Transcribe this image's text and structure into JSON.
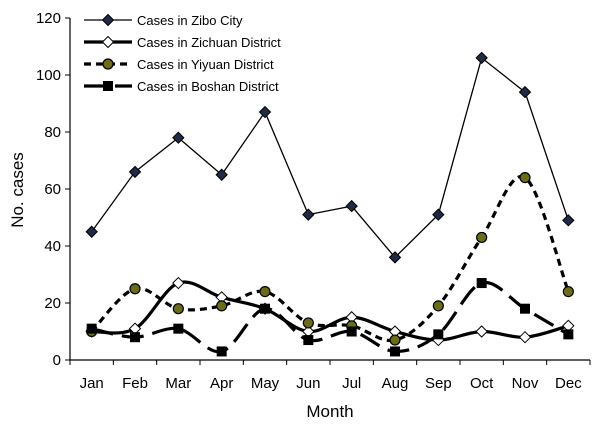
{
  "chart_data": {
    "type": "line",
    "title": "",
    "xlabel": "Month",
    "ylabel": "No. cases",
    "categories": [
      "Jan",
      "Feb",
      "Mar",
      "Apr",
      "May",
      "Jun",
      "Jul",
      "Aug",
      "Sep",
      "Oct",
      "Nov",
      "Dec"
    ],
    "ylim": [
      0,
      120
    ],
    "yticks": [
      0,
      20,
      40,
      60,
      80,
      100,
      120
    ],
    "grid": false,
    "legend_position": "top-left",
    "series": [
      {
        "name": "Cases in Zibo City",
        "values": [
          45,
          66,
          78,
          65,
          87,
          51,
          54,
          36,
          51,
          106,
          94,
          49
        ],
        "line_style": "solid-thin",
        "marker": "diamond-filled",
        "marker_color": "#1f2a44"
      },
      {
        "name": "Cases in Zichuan District",
        "values": [
          10,
          11,
          27,
          22,
          18,
          10,
          15,
          10,
          7,
          10,
          8,
          12
        ],
        "line_style": "solid-thick",
        "marker": "diamond-open",
        "marker_color": "#ffffff"
      },
      {
        "name": "Cases in Yiyuan District",
        "values": [
          10,
          25,
          18,
          19,
          24,
          13,
          12,
          7,
          19,
          43,
          64,
          24
        ],
        "line_style": "dashed-short",
        "marker": "circle-filled",
        "marker_color": "#6b6b1a"
      },
      {
        "name": "Cases in Boshan District",
        "values": [
          11,
          8,
          11,
          3,
          18,
          7,
          10,
          3,
          9,
          27,
          18,
          9
        ],
        "line_style": "dashed-long",
        "marker": "square-filled",
        "marker_color": "#000000"
      }
    ]
  }
}
